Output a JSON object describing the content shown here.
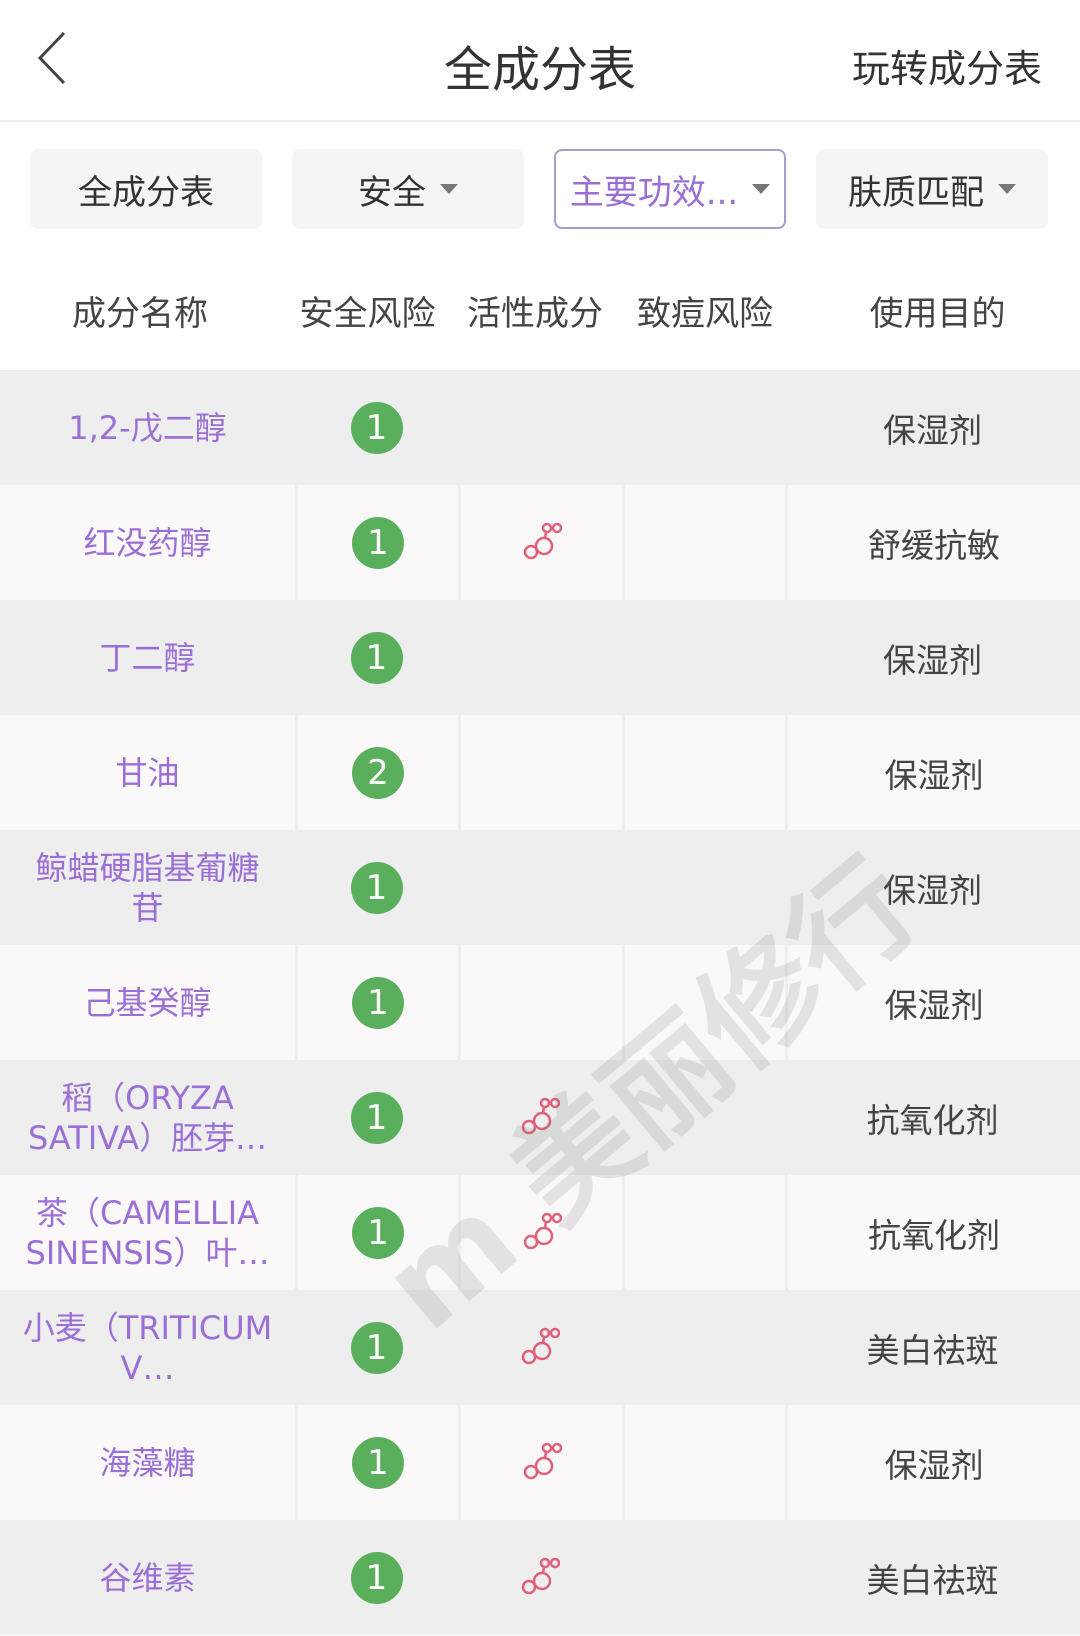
{
  "nav": {
    "title": "全成分表",
    "right_link": "玩转成分表",
    "back_icon": "chevron-left-icon"
  },
  "filters": [
    {
      "label": "全成分表",
      "dropdown": false,
      "active": false
    },
    {
      "label": "安全",
      "dropdown": true,
      "active": false
    },
    {
      "label": "主要功效...",
      "dropdown": true,
      "active": true
    },
    {
      "label": "肤质匹配",
      "dropdown": true,
      "active": false
    }
  ],
  "table": {
    "headers": [
      "成分名称",
      "安全风险",
      "活性成分",
      "致痘风险",
      "使用目的"
    ],
    "rows": [
      {
        "name": "1,2-戊二醇",
        "risk": "1",
        "active": false,
        "acne": "",
        "purpose": "保湿剂"
      },
      {
        "name": "红没药醇",
        "risk": "1",
        "active": true,
        "acne": "",
        "purpose": "舒缓抗敏"
      },
      {
        "name": "丁二醇",
        "risk": "1",
        "active": false,
        "acne": "",
        "purpose": "保湿剂"
      },
      {
        "name": "甘油",
        "risk": "2",
        "active": false,
        "acne": "",
        "purpose": "保湿剂"
      },
      {
        "name": "鲸蜡硬脂基葡糖苷",
        "risk": "1",
        "active": false,
        "acne": "",
        "purpose": "保湿剂"
      },
      {
        "name": "己基癸醇",
        "risk": "1",
        "active": false,
        "acne": "",
        "purpose": "保湿剂"
      },
      {
        "name": "稻（ORYZA SATIVA）胚芽…",
        "risk": "1",
        "active": true,
        "acne": "",
        "purpose": "抗氧化剂"
      },
      {
        "name": "茶（CAMELLIA SINENSIS）叶…",
        "risk": "1",
        "active": true,
        "acne": "",
        "purpose": "抗氧化剂"
      },
      {
        "name": "小麦（TRITICUM V…",
        "risk": "1",
        "active": true,
        "acne": "",
        "purpose": "美白祛斑"
      },
      {
        "name": "海藻糖",
        "risk": "1",
        "active": true,
        "acne": "",
        "purpose": "保湿剂"
      },
      {
        "name": "谷维素",
        "risk": "1",
        "active": true,
        "acne": "",
        "purpose": "美白祛斑"
      }
    ]
  },
  "watermark": "m 美丽修行",
  "colors": {
    "accent": "#9a6fd6",
    "safe_green": "#5aaf5c",
    "active_icon": "#e0607a"
  }
}
